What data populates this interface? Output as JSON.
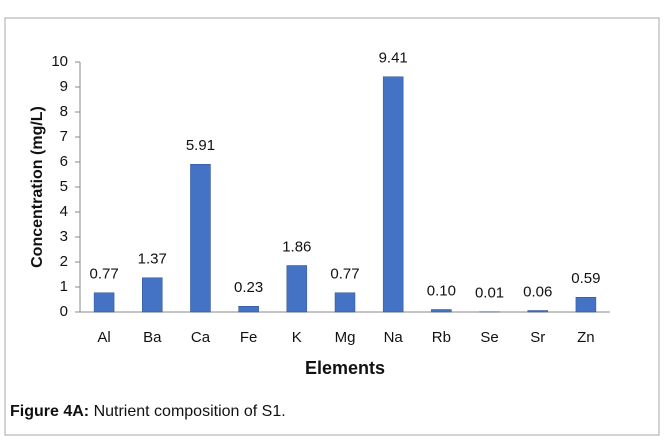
{
  "chart_data": {
    "type": "bar",
    "y_label": "Concentration (mg/L)",
    "x_label": "Elements",
    "categories": [
      "Al",
      "Ba",
      "Ca",
      "Fe",
      "K",
      "Mg",
      "Na",
      "Rb",
      "Se",
      "Sr",
      "Zn"
    ],
    "values": [
      0.77,
      1.37,
      5.91,
      0.23,
      1.86,
      0.77,
      9.41,
      0.1,
      0.01,
      0.06,
      0.59
    ],
    "value_labels": [
      "0.77",
      "1.37",
      "5.91",
      "0.23",
      "1.86",
      "0.77",
      "9.41",
      "0.10",
      "0.01",
      "0.06",
      "0.59"
    ],
    "color": "#4472c4",
    "ylim": [
      0,
      10
    ],
    "yticks": [
      0,
      1,
      2,
      3,
      4,
      5,
      6,
      7,
      8,
      9,
      10
    ],
    "grid": false
  },
  "caption": {
    "label": "Figure 4A:",
    "text": "Nutrient composition of S1."
  }
}
